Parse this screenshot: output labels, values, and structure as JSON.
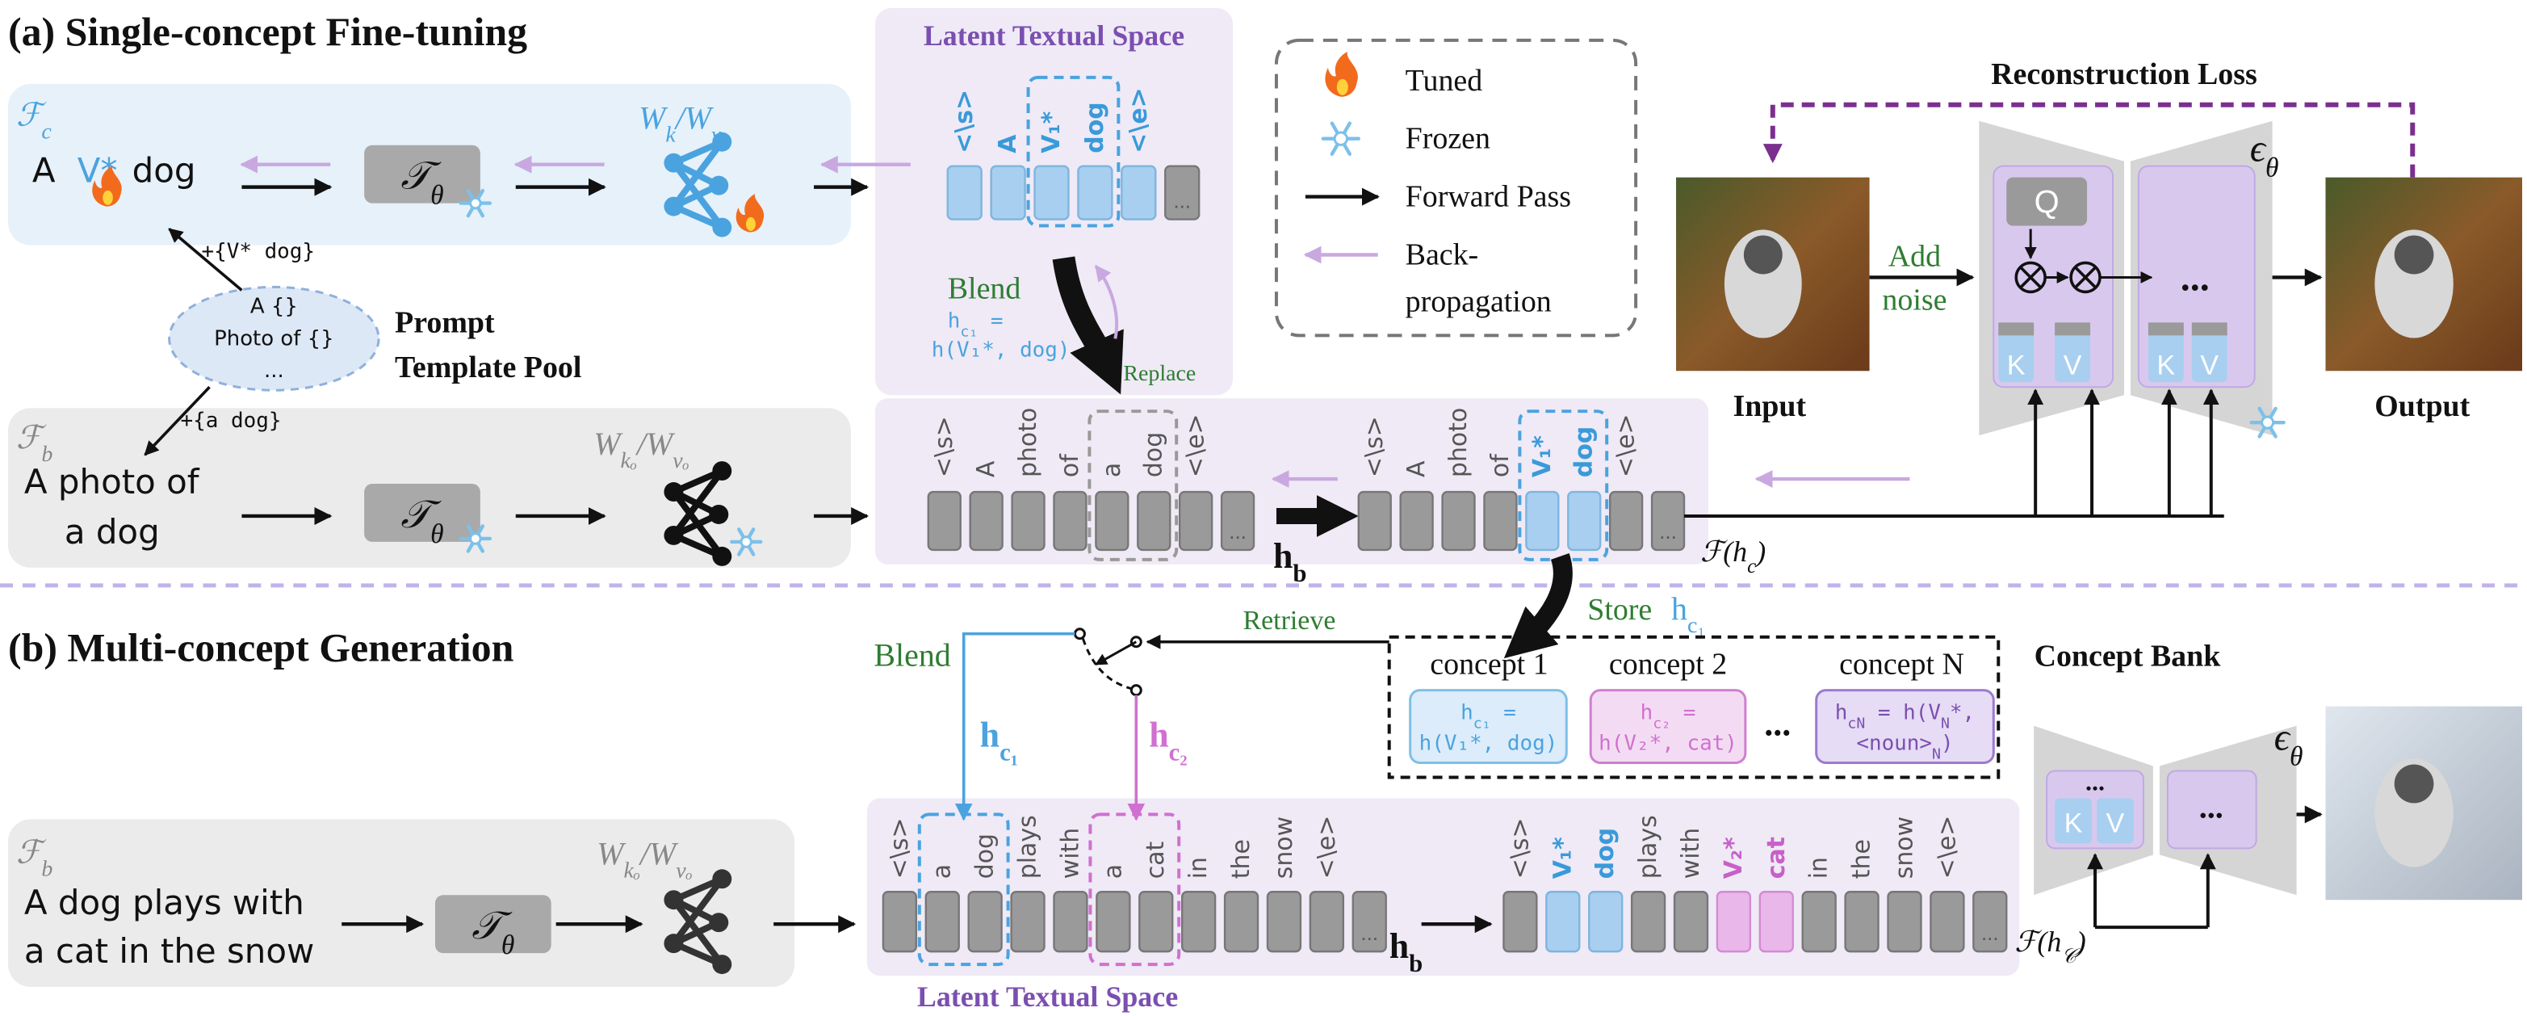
{
  "section_a": {
    "title": "(a) Single-concept Fine-tuning"
  },
  "section_b": {
    "title": "(b) Multi-concept Generation"
  },
  "legend": {
    "tuned": "Tuned",
    "frozen": "Frozen",
    "forward": "Forward Pass",
    "backprop_1": "Back-",
    "backprop_2": "propagation"
  },
  "ellipsis": "...",
  "fine_tune": {
    "tuned_branch": [
      {
        "text": "ℱ"
      },
      {
        "text": "c",
        "sub": true
      }
    ],
    "base_branch": [
      {
        "text": "ℱ"
      },
      {
        "text": "b",
        "sub": true
      }
    ],
    "prompt_tuned": [
      "A",
      "V*",
      "dog"
    ],
    "prompt_base": [
      "A photo of",
      "a dog"
    ],
    "encoder": [
      {
        "text": "𝒯"
      },
      {
        "text": "θ",
        "sub": true
      }
    ],
    "proj_tuned": [
      {
        "text": "W"
      },
      {
        "text": "k",
        "sub": true
      },
      {
        "text": "/W"
      },
      {
        "text": "v",
        "sub": true
      }
    ],
    "proj_frozen": [
      {
        "text": "W"
      },
      {
        "text": "kₒ",
        "sub": true
      },
      {
        "text": "/W"
      },
      {
        "text": "vₒ",
        "sub": true
      }
    ],
    "template_pool": {
      "title_1": "Prompt",
      "title_2": "Template Pool",
      "items": [
        "A {}",
        "Photo of {}",
        "..."
      ]
    },
    "fill_tuned": "+{V* dog}",
    "fill_base": "+{a dog}",
    "latent_space": "Latent Textual Space",
    "tokens_top": [
      "<\\s>",
      "A",
      "V₁*",
      "dog",
      "<\\e>"
    ],
    "blend": "Blend",
    "blend_eq_1": [
      {
        "text": "h"
      },
      {
        "text": "c₁",
        "sub": true
      },
      {
        "text": " ="
      }
    ],
    "blend_eq_2": "h(V₁*, dog)",
    "replace": "Replace",
    "tokens_base": [
      "<\\s>",
      "A",
      "photo",
      "of",
      "a",
      "dog",
      "<\\e>"
    ],
    "tokens_replaced": [
      "<\\s>",
      "A",
      "photo",
      "of",
      "V₁*",
      "dog",
      "<\\e>"
    ],
    "h_b": [
      {
        "text": "h"
      },
      {
        "text": "b",
        "sub": true
      }
    ],
    "f_hc": [
      {
        "text": "ℱ(h"
      },
      {
        "text": "c",
        "sub": true
      },
      {
        "text": ")"
      }
    ],
    "reconstruction_loss": "Reconstruction Loss",
    "add_noise_1": "Add",
    "add_noise_2": "noise",
    "input": "Input",
    "output": "Output",
    "unet": {
      "eps": [
        {
          "text": "ϵ"
        },
        {
          "text": "θ",
          "sub": true
        }
      ],
      "q": "Q",
      "k": "K",
      "v": "V"
    }
  },
  "generation": {
    "store": "Store",
    "store_h": [
      {
        "text": "h"
      },
      {
        "text": "c₁",
        "sub": true
      }
    ],
    "retrieve": "Retrieve",
    "blend": "Blend",
    "h_c1": [
      {
        "text": "h"
      },
      {
        "text": "c₁",
        "sub": true
      }
    ],
    "h_c2": [
      {
        "text": "h"
      },
      {
        "text": "c₂",
        "sub": true
      }
    ],
    "concept_bank": {
      "title": "Concept Bank",
      "concepts": [
        {
          "name": "concept 1",
          "eq_1": [
            {
              "text": "h"
            },
            {
              "text": "c₁",
              "sub": true
            },
            {
              "text": " ="
            }
          ],
          "eq_2": [
            {
              "text": "h(V₁*, dog)"
            }
          ]
        },
        {
          "name": "concept 2",
          "eq_1": [
            {
              "text": "h"
            },
            {
              "text": "c₂",
              "sub": true
            },
            {
              "text": " ="
            }
          ],
          "eq_2": [
            {
              "text": "h(V₂*, cat)"
            }
          ]
        },
        {
          "name": "concept N",
          "eq_1": [
            {
              "text": "h"
            },
            {
              "text": "cN",
              "sub": true
            },
            {
              "text": " = h(V"
            },
            {
              "text": "N",
              "sub": true
            },
            {
              "text": "*,"
            }
          ],
          "eq_2": [
            {
              "text": "<noun>"
            },
            {
              "text": "N",
              "sub": true
            },
            {
              "text": ")"
            }
          ]
        }
      ]
    },
    "base_branch": [
      {
        "text": "ℱ"
      },
      {
        "text": "b",
        "sub": true
      }
    ],
    "prompt": [
      "A dog plays with",
      "a cat in the snow"
    ],
    "encoder": [
      {
        "text": "𝒯"
      },
      {
        "text": "θ",
        "sub": true
      }
    ],
    "proj_frozen": [
      {
        "text": "W"
      },
      {
        "text": "kₒ",
        "sub": true
      },
      {
        "text": "/W"
      },
      {
        "text": "vₒ",
        "sub": true
      }
    ],
    "tokens_base": [
      "<\\s>",
      "a",
      "dog",
      "plays",
      "with",
      "a",
      "cat",
      "in",
      "the",
      "snow",
      "<\\e>"
    ],
    "tokens_blended": [
      "<\\s>",
      "V₁*",
      "dog",
      "plays",
      "with",
      "V₂*",
      "cat",
      "in",
      "the",
      "snow",
      "<\\e>"
    ],
    "h_b": [
      {
        "text": "h"
      },
      {
        "text": "b",
        "sub": true
      }
    ],
    "f_hC": [
      {
        "text": "ℱ(h"
      },
      {
        "text": "𝒞",
        "sub": true
      },
      {
        "text": ")"
      }
    ],
    "latent_space": "Latent Textual Space",
    "unet": {
      "eps": [
        {
          "text": "ϵ"
        },
        {
          "text": "θ",
          "sub": true
        }
      ],
      "k": "K",
      "v": "V"
    }
  }
}
